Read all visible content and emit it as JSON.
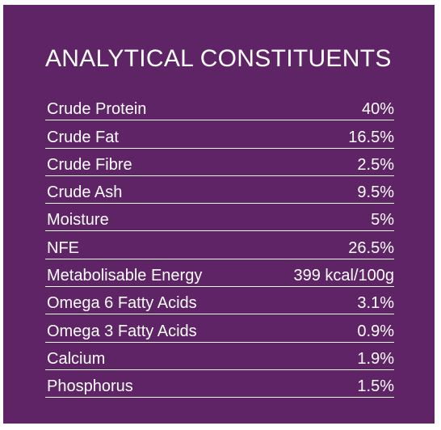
{
  "title": "ANALYTICAL CONSTITUENTS",
  "colors": {
    "background": "#5f2466",
    "text": "#ffffff"
  },
  "rows": [
    {
      "label": "Crude Protein",
      "value": "40%"
    },
    {
      "label": "Crude Fat",
      "value": "16.5%"
    },
    {
      "label": "Crude Fibre",
      "value": "2.5%"
    },
    {
      "label": "Crude Ash",
      "value": "9.5%"
    },
    {
      "label": "Moisture",
      "value": "5%"
    },
    {
      "label": "NFE",
      "value": "26.5%"
    },
    {
      "label": "Metabolisable Energy",
      "value": "399 kcal/100g"
    },
    {
      "label": "Omega 6 Fatty Acids",
      "value": "3.1%"
    },
    {
      "label": "Omega 3 Fatty Acids",
      "value": "0.9%"
    },
    {
      "label": "Calcium",
      "value": "1.9%"
    },
    {
      "label": "Phosphorus",
      "value": "1.5%"
    }
  ]
}
